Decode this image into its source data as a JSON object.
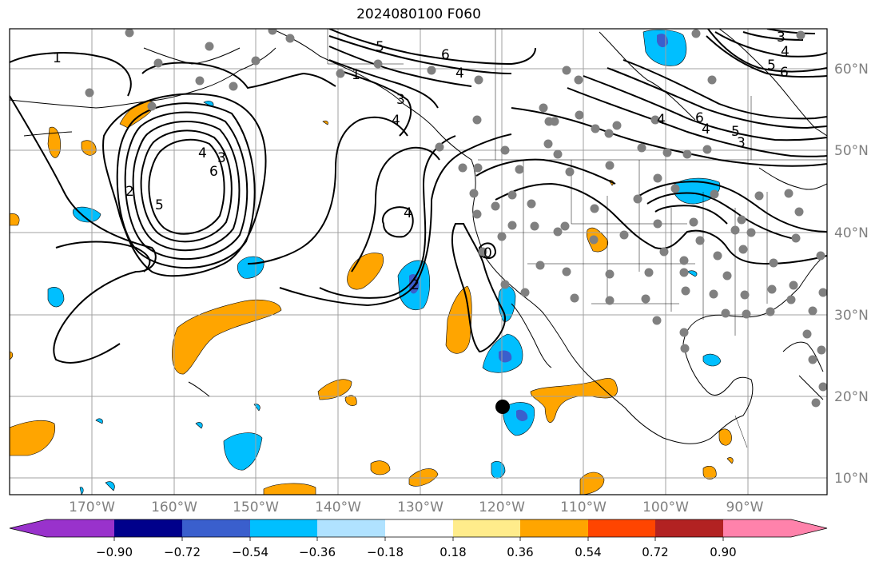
{
  "title": "2024080100 F060",
  "map": {
    "projection": "equirectangular",
    "lon_range": [
      "175°W",
      "80°W"
    ],
    "lat_range": [
      "8°N",
      "65°N"
    ],
    "grid": true
  },
  "lon_labels": [
    "170°W",
    "160°W",
    "150°W",
    "140°W",
    "130°W",
    "120°W",
    "110°W",
    "100°W",
    "90°W"
  ],
  "lat_labels": [
    "60°N",
    "50°N",
    "40°N",
    "30°N",
    "20°N",
    "10°N"
  ],
  "contour_labels": {
    "a": "1",
    "b": "5",
    "c": "6",
    "d": "4",
    "e": "1",
    "f": "3",
    "g": "5",
    "h": "4",
    "i": "6",
    "j": "4",
    "k": "2",
    "l": "4",
    "m": "3",
    "n": "6",
    "o": "3",
    "p": "4",
    "q": "2",
    "r": "0",
    "s": "4",
    "t": "6",
    "u": "4",
    "v": "5",
    "w": "3",
    "x": "5"
  },
  "colorbar": {
    "ticks": [
      "−0.90",
      "−0.72",
      "−0.54",
      "−0.36",
      "−0.18",
      "0.18",
      "0.36",
      "0.54",
      "0.72",
      "0.90"
    ],
    "colors": [
      "#9932cc",
      "#00008b",
      "#3a5fcd",
      "#00bfff",
      "#b0e2ff",
      "#ffffff",
      "#ffec8b",
      "#ffa500",
      "#ff4500",
      "#b22222",
      "#ff82ab"
    ]
  },
  "colors": {
    "positive_shade": "#ffa500",
    "negative_shade": "#00bfff",
    "strong_negative": "#3a5fcd",
    "station_dot": "#808080"
  },
  "marker": "black-dot"
}
